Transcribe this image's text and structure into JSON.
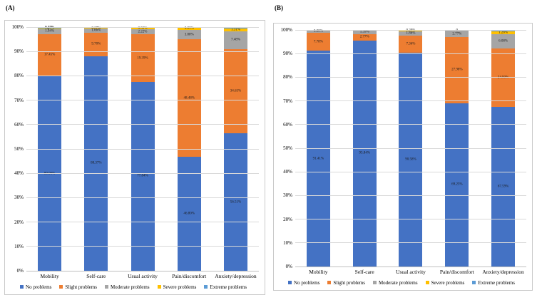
{
  "figure": {
    "panel_a_label": "(A)",
    "panel_b_label": "(B)"
  },
  "colors": {
    "no_problems": "#4472C4",
    "slight_problems": "#ED7D31",
    "moderate_problems": "#A5A5A5",
    "severe_problems": "#FFC000",
    "extreme_problems": "#5B9BD5",
    "gridline": "#D9D9D9",
    "chart_border": "#C9C9C9"
  },
  "chart_data": [
    {
      "type": "bar",
      "stacked": true,
      "panel": "A",
      "title": "",
      "xlabel": "",
      "ylabel": "",
      "ylim": [
        0,
        100
      ],
      "grid": true,
      "legend_position": "bottom",
      "yticks": [
        "0%",
        "10%",
        "20%",
        "30%",
        "40%",
        "50%",
        "60%",
        "70%",
        "80%",
        "90%",
        "100%"
      ],
      "categories": [
        "Mobility",
        "Self-care",
        "Usual activity",
        "Pain/discomfort",
        "Anxiety/depression"
      ],
      "series": [
        {
          "name": "No problems",
          "color": "#4472C4",
          "values": [
            80.06,
            88.37,
            77.84,
            46.8,
            56.51
          ],
          "labels": [
            "80.06%",
            "88.37%",
            "77.84%",
            "46.80%",
            "56.51%"
          ]
        },
        {
          "name": "Slight problems",
          "color": "#ED7D31",
          "values": [
            17.45,
            9.7,
            19.39,
            48.48,
            34.63
          ],
          "labels": [
            "17.45%",
            "9.70%",
            "19.39%",
            "48.48%",
            "34.63%"
          ]
        },
        {
          "name": "Moderate problems",
          "color": "#A5A5A5",
          "values": [
            1.94,
            1.66,
            2.22,
            3.88,
            7.48
          ],
          "labels": [
            "1.94%",
            "1.66%",
            "2.22%",
            "3.88%",
            "7.48%"
          ]
        },
        {
          "name": "Severe problems",
          "color": "#FFC000",
          "values": [
            0.28,
            0.27,
            0.55,
            0.83,
            1.31
          ],
          "labels": [
            "0.28%",
            "0.27%",
            "0.55%",
            "0.83%",
            "1.31%"
          ]
        },
        {
          "name": "Extreme problems",
          "color": "#5B9BD5",
          "values": [
            0.27,
            0.0,
            0.0,
            0.01,
            0.07
          ],
          "labels": [
            "0.27%",
            "",
            "",
            "",
            ""
          ]
        }
      ]
    },
    {
      "type": "bar",
      "stacked": true,
      "panel": "B",
      "title": "",
      "xlabel": "",
      "ylabel": "",
      "ylim": [
        0,
        100
      ],
      "grid": true,
      "legend_position": "bottom",
      "yticks": [
        "0%",
        "10%",
        "20%",
        "30%",
        "40%",
        "50%",
        "60%",
        "70%",
        "80%",
        "90%",
        "100%"
      ],
      "categories": [
        "Mobility",
        "Self-care",
        "Usual activity",
        "Pain/discomfort",
        "Anxiety/depression"
      ],
      "series": [
        {
          "name": "No problems",
          "color": "#4472C4",
          "values": [
            91.41,
            95.84,
            90.58,
            69.25,
            67.59
          ],
          "labels": [
            "91.41%",
            "95.84%",
            "90.58%",
            "69.25%",
            "67.59%"
          ]
        },
        {
          "name": "Slight problems",
          "color": "#ED7D31",
          "values": [
            7.78,
            2.77,
            7.36,
            27.98,
            24.93
          ],
          "labels": [
            "7.78%",
            "2.77%",
            "7.36%",
            "27.98%",
            "24.93%"
          ]
        },
        {
          "name": "Moderate problems",
          "color": "#A5A5A5",
          "values": [
            0.8,
            1.39,
            1.86,
            2.77,
            6.08
          ],
          "labels": [
            "0.80%",
            "1.39%",
            "1.86%",
            "2.77%",
            "6.08%"
          ]
        },
        {
          "name": "Severe problems",
          "color": "#FFC000",
          "values": [
            0.01,
            0.0,
            0.2,
            0.0,
            1.28
          ],
          "labels": [
            "",
            "",
            "0.20%",
            "0",
            "1.28%"
          ]
        },
        {
          "name": "Extreme problems",
          "color": "#5B9BD5",
          "values": [
            0.0,
            0.0,
            0.0,
            0.0,
            0.12
          ],
          "labels": [
            "",
            "",
            "",
            "",
            ""
          ]
        }
      ]
    }
  ]
}
